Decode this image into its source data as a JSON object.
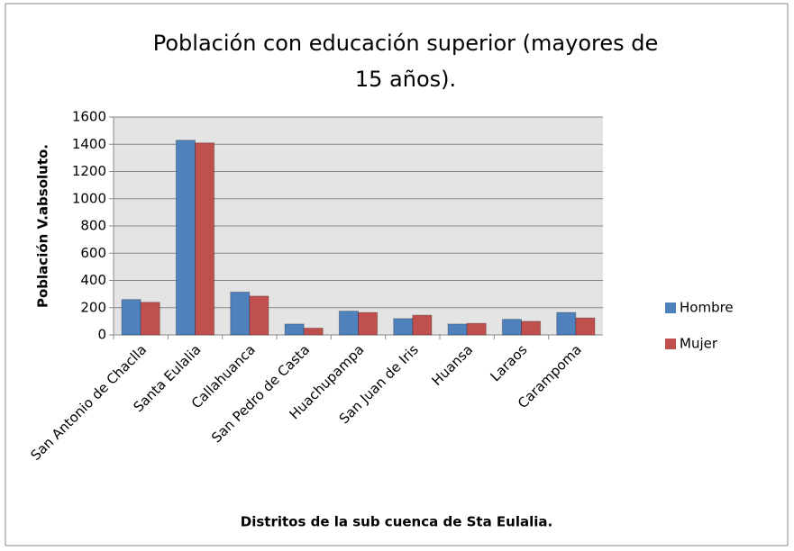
{
  "chart_data": {
    "type": "bar",
    "title": "Población con educación superior (mayores de 15 años).",
    "x_label": "Distritos de la sub cuenca de Sta Eulalia.",
    "y_label": "Población V.absoluto.",
    "categories": [
      "San Antonio de Chaclla",
      "Santa Eulalia",
      "Callahuanca",
      "San Pedro de Casta",
      "Huachupampa",
      "San Juan de Iris",
      "Huansa",
      "Laraos",
      "Carampoma"
    ],
    "series": [
      {
        "name": "Hombre",
        "color": "#4f81bd",
        "values": [
          260,
          1430,
          315,
          80,
          175,
          120,
          80,
          115,
          165
        ]
      },
      {
        "name": "Mujer",
        "color": "#c0504d",
        "values": [
          240,
          1410,
          285,
          50,
          165,
          145,
          85,
          100,
          125
        ]
      }
    ],
    "ylim": [
      0,
      1600
    ],
    "yticks": [
      0,
      200,
      400,
      600,
      800,
      1000,
      1200,
      1400,
      1600
    ],
    "grid": true,
    "legend": "right"
  }
}
